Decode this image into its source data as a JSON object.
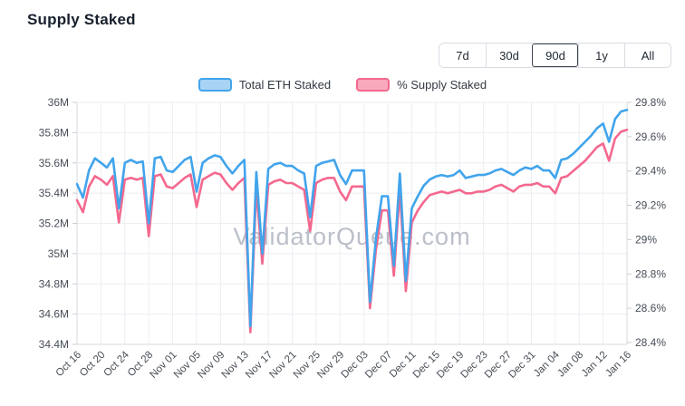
{
  "header": {
    "title": "Supply Staked"
  },
  "range_selector": {
    "options": [
      "7d",
      "30d",
      "90d",
      "1y",
      "All"
    ],
    "selected": "90d"
  },
  "legend": {
    "items": [
      {
        "label": "Total ETH Staked",
        "line_color": "#41a4ec",
        "fill_color": "#a9d3f4"
      },
      {
        "label": "% Supply Staked",
        "line_color": "#f4688e",
        "fill_color": "#f9a9bd"
      }
    ]
  },
  "watermark": "ValidatorQueue.com",
  "colors": {
    "grid": "#eceef2",
    "axis_line": "#d4d8de",
    "tick": "#c9cdd4",
    "axis_text": "#474d57",
    "blue_line": "#41a4ec",
    "pink_line": "#f4688e"
  },
  "chart_data": {
    "type": "line",
    "title": "Supply Staked",
    "xlabel": "",
    "ylabel_left": "Total ETH Staked",
    "ylabel_right": "% Supply Staked",
    "grid": true,
    "legend_position": "top",
    "x_tick_interval": 4,
    "x": [
      "Oct 16",
      "Oct 17",
      "Oct 18",
      "Oct 19",
      "Oct 20",
      "Oct 21",
      "Oct 22",
      "Oct 23",
      "Oct 24",
      "Oct 25",
      "Oct 26",
      "Oct 27",
      "Oct 28",
      "Oct 29",
      "Oct 30",
      "Oct 31",
      "Nov 01",
      "Nov 02",
      "Nov 03",
      "Nov 04",
      "Nov 05",
      "Nov 06",
      "Nov 07",
      "Nov 08",
      "Nov 09",
      "Nov 10",
      "Nov 11",
      "Nov 12",
      "Nov 13",
      "Nov 14",
      "Nov 15",
      "Nov 16",
      "Nov 17",
      "Nov 18",
      "Nov 19",
      "Nov 20",
      "Nov 21",
      "Nov 22",
      "Nov 23",
      "Nov 24",
      "Nov 25",
      "Nov 26",
      "Nov 27",
      "Nov 28",
      "Nov 29",
      "Nov 30",
      "Dec 01",
      "Dec 02",
      "Dec 03",
      "Dec 04",
      "Dec 05",
      "Dec 06",
      "Dec 07",
      "Dec 08",
      "Dec 09",
      "Dec 10",
      "Dec 11",
      "Dec 12",
      "Dec 13",
      "Dec 14",
      "Dec 15",
      "Dec 16",
      "Dec 17",
      "Dec 18",
      "Dec 19",
      "Dec 20",
      "Dec 21",
      "Dec 22",
      "Dec 23",
      "Dec 24",
      "Dec 25",
      "Dec 26",
      "Dec 27",
      "Dec 28",
      "Dec 29",
      "Dec 30",
      "Dec 31",
      "Jan 01",
      "Jan 02",
      "Jan 03",
      "Jan 04",
      "Jan 05",
      "Jan 06",
      "Jan 07",
      "Jan 08",
      "Jan 09",
      "Jan 10",
      "Jan 11",
      "Jan 12",
      "Jan 13",
      "Jan 14",
      "Jan 15",
      "Jan 16"
    ],
    "left_axis": {
      "min": 34.4,
      "max": 36,
      "tick_labels": [
        "36M",
        "35.8M",
        "35.6M",
        "35.4M",
        "35.2M",
        "35M",
        "34.8M",
        "34.6M",
        "34.4M"
      ]
    },
    "right_axis": {
      "min": 28.4,
      "max": 29.8,
      "tick_labels": [
        "29.8%",
        "29.6%",
        "29.4%",
        "29.2%",
        "29%",
        "28.8%",
        "28.6%",
        "28.4%"
      ]
    },
    "series": [
      {
        "name": "Total ETH Staked",
        "axis": "left",
        "unit": "M ETH",
        "color": "#41a4ec",
        "values": [
          35.46,
          35.37,
          35.55,
          35.63,
          35.6,
          35.57,
          35.63,
          35.3,
          35.6,
          35.62,
          35.6,
          35.61,
          35.2,
          35.63,
          35.64,
          35.55,
          35.54,
          35.58,
          35.62,
          35.64,
          35.41,
          35.6,
          35.63,
          35.65,
          35.64,
          35.58,
          35.53,
          35.58,
          35.62,
          34.52,
          35.54,
          35.0,
          35.56,
          35.59,
          35.6,
          35.58,
          35.58,
          35.55,
          35.53,
          35.24,
          35.58,
          35.6,
          35.61,
          35.62,
          35.52,
          35.46,
          35.55,
          35.55,
          35.55,
          34.68,
          35.1,
          35.38,
          35.38,
          34.92,
          35.53,
          34.82,
          35.3,
          35.38,
          35.45,
          35.49,
          35.51,
          35.52,
          35.51,
          35.52,
          35.55,
          35.5,
          35.51,
          35.52,
          35.52,
          35.53,
          35.55,
          35.56,
          35.54,
          35.52,
          35.55,
          35.57,
          35.56,
          35.58,
          35.55,
          35.55,
          35.5,
          35.62,
          35.63,
          35.66,
          35.7,
          35.74,
          35.78,
          35.83,
          35.86,
          35.74,
          35.89,
          35.94,
          35.95
        ]
      },
      {
        "name": "% Supply Staked",
        "axis": "right",
        "unit": "%",
        "color": "#f4688e",
        "values": [
          29.23,
          29.16,
          29.31,
          29.37,
          29.35,
          29.32,
          29.37,
          29.1,
          29.35,
          29.36,
          29.35,
          29.36,
          29.02,
          29.37,
          29.38,
          29.31,
          29.3,
          29.33,
          29.36,
          29.38,
          29.19,
          29.35,
          29.37,
          29.39,
          29.38,
          29.33,
          29.29,
          29.33,
          29.36,
          28.46,
          29.3,
          28.86,
          29.32,
          29.34,
          29.35,
          29.33,
          29.33,
          29.31,
          29.29,
          29.05,
          29.33,
          29.35,
          29.36,
          29.36,
          29.28,
          29.23,
          29.31,
          29.31,
          29.31,
          28.6,
          28.94,
          29.17,
          29.17,
          28.79,
          29.29,
          28.7,
          29.1,
          29.17,
          29.22,
          29.26,
          29.27,
          29.28,
          29.27,
          29.28,
          29.29,
          29.27,
          29.27,
          29.28,
          29.28,
          29.29,
          29.31,
          29.32,
          29.3,
          29.28,
          29.31,
          29.32,
          29.32,
          29.33,
          29.31,
          29.31,
          29.27,
          29.36,
          29.37,
          29.4,
          29.43,
          29.46,
          29.5,
          29.54,
          29.56,
          29.46,
          29.59,
          29.63,
          29.64
        ]
      }
    ]
  }
}
